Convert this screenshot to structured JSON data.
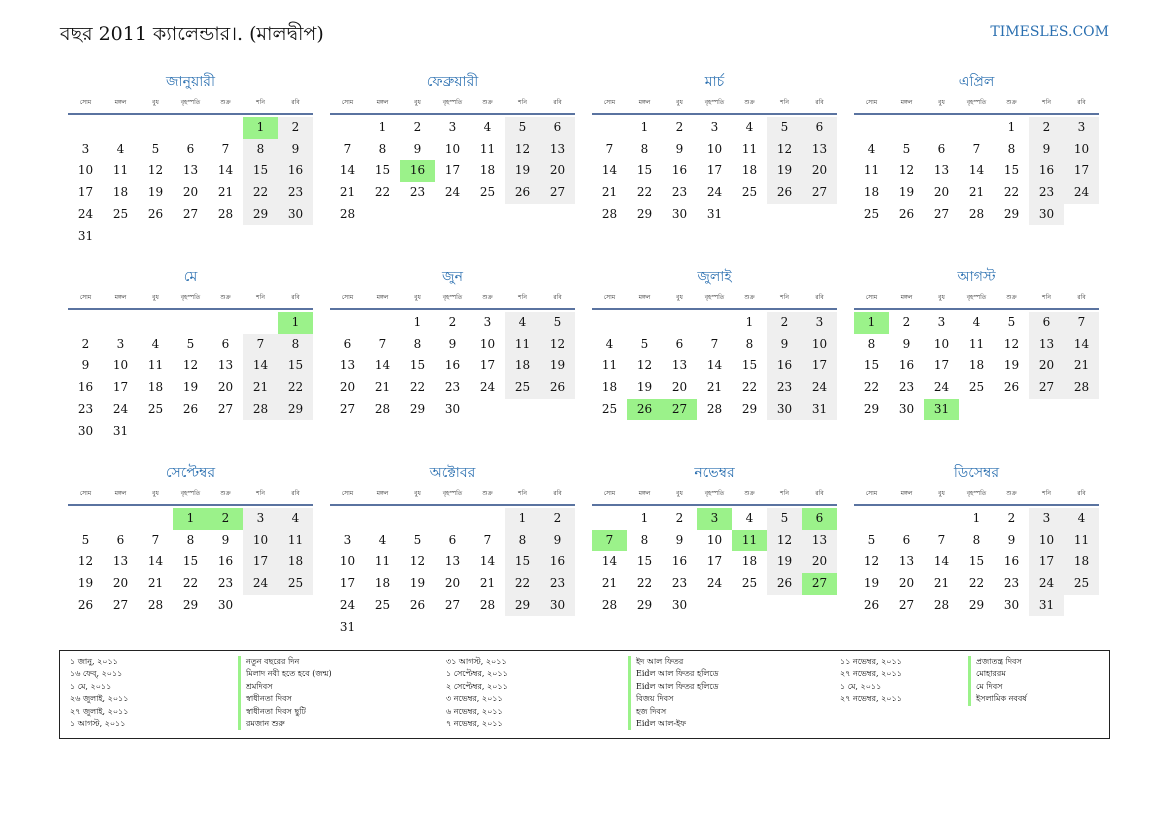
{
  "header": {
    "title": "বছর 2011 ক্যালেন্ডার।. (মালদ্বীপ)",
    "site": "TIMESLES.COM"
  },
  "colors": {
    "accent": "#2a6fb0",
    "weekend_bg": "#efefef",
    "holiday_bg": "#9bf28a",
    "rule": "#5a73a0"
  },
  "weekdays": [
    "সোম",
    "মঙ্গল",
    "বুধ",
    "বৃহস্পতি",
    "শুক্র",
    "শনি",
    "রবি"
  ],
  "months": [
    {
      "name": "জানুয়ারী",
      "offset": 5,
      "days": 31,
      "holidays": [
        1
      ]
    },
    {
      "name": "ফেব্রুয়ারী",
      "offset": 1,
      "days": 28,
      "holidays": [
        16
      ]
    },
    {
      "name": "মার্চ",
      "offset": 1,
      "days": 31,
      "holidays": []
    },
    {
      "name": "এপ্রিল",
      "offset": 4,
      "days": 30,
      "holidays": []
    },
    {
      "name": "মে",
      "offset": 6,
      "days": 31,
      "holidays": [
        1
      ]
    },
    {
      "name": "জুন",
      "offset": 2,
      "days": 30,
      "holidays": []
    },
    {
      "name": "জুলাই",
      "offset": 4,
      "days": 31,
      "holidays": [
        26,
        27
      ]
    },
    {
      "name": "আগস্ট",
      "offset": 0,
      "days": 31,
      "holidays": [
        1,
        31
      ]
    },
    {
      "name": "সেপ্টেম্বর",
      "offset": 3,
      "days": 30,
      "holidays": [
        1,
        2
      ]
    },
    {
      "name": "অক্টোবর",
      "offset": 5,
      "days": 31,
      "holidays": []
    },
    {
      "name": "নভেম্বর",
      "offset": 1,
      "days": 30,
      "holidays": [
        3,
        6,
        7,
        11,
        27
      ]
    },
    {
      "name": "ডিসেম্বর",
      "offset": 3,
      "days": 31,
      "holidays": []
    }
  ],
  "legend": [
    {
      "dates": [
        "১ জানু, ২০১১",
        "১৬ ফেব্, ২০১১",
        "১ মে, ২০১১",
        "২৬ জুলাই, ২০১১",
        "২৭ জুলাই, ২০১১",
        "১ আগস্ট, ২০১১"
      ],
      "names": [
        "নতুন বছরের দিন",
        "মিলাদ নবী হতে হবে (জন্ম)",
        "শ্রমদিবস",
        "স্বাধীনতা দিবস",
        "স্বাধীনতা দিবস ছুটি",
        "রমজান শুরু"
      ]
    },
    {
      "dates": [
        "৩১ আগস্ট, ২০১১",
        "১ সেপ্টেম্বর, ২০১১",
        "২ সেপ্টেম্বর, ২০১১",
        "৩ নভেম্বর, ২০১১",
        "৬ নভেম্বর, ২০১১",
        "৭ নভেম্বর, ২০১১"
      ],
      "names": [
        "ইদ আল ফিতর",
        "Eidল আল ফিতর হলিডে",
        "Eidল আল ফিতর হলিডে",
        "বিজয় দিবস",
        "হজ দিবস",
        "Eidল আল-ইফ"
      ]
    },
    {
      "dates": [
        "১১ নভেম্বর, ২০১১",
        "২৭ নভেম্বর, ২০১১",
        "১ মে, ২০১১",
        "২৭ নভেম্বর, ২০১১"
      ],
      "names": [
        "প্রজাতন্ত্র দিবস",
        "মোহাররম",
        "মে দিবস",
        "ইসলামিক নববর্ষ"
      ]
    }
  ]
}
